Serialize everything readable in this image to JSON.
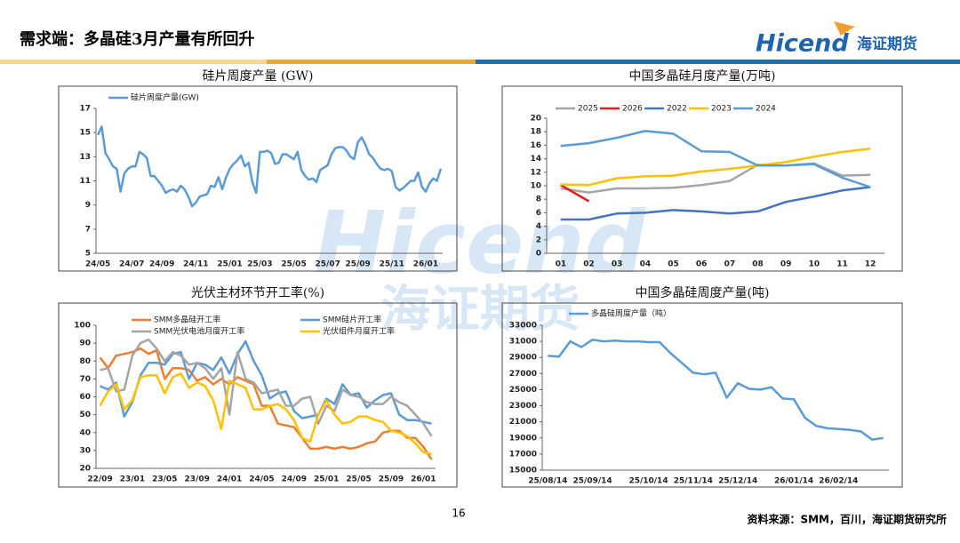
{
  "header": {
    "title": "需求端：多晶硅3月产量有所回升",
    "logo_latin": "Hicend",
    "logo_cn": "海证期货"
  },
  "watermark": {
    "latin": "Hicend",
    "cn": "海证期货"
  },
  "footer": {
    "page": "16",
    "source": "资料来源：SMM，百川，海证期货研究所"
  },
  "chart_data": [
    {
      "type": "line",
      "title": "硅片周度产量 (GW)",
      "categories": [
        "24/05",
        null,
        null,
        null,
        null,
        null,
        null,
        null,
        null,
        "24/07",
        null,
        null,
        null,
        null,
        null,
        null,
        null,
        "24/09",
        null,
        null,
        null,
        null,
        null,
        null,
        null,
        null,
        "24/11",
        null,
        null,
        null,
        null,
        null,
        null,
        null,
        null,
        "25/01",
        null,
        null,
        null,
        null,
        null,
        null,
        null,
        "25/03",
        null,
        null,
        null,
        null,
        null,
        null,
        null,
        null,
        "25/05",
        null,
        null,
        null,
        null,
        null,
        null,
        null,
        null,
        "25/07",
        null,
        null,
        null,
        null,
        null,
        null,
        null,
        "25/09",
        null,
        null,
        null,
        null,
        null,
        null,
        null,
        null,
        "25/11",
        null,
        null,
        null,
        null,
        null,
        null,
        null,
        null,
        "26/01",
        null,
        null,
        null,
        null
      ],
      "series": [
        {
          "name": "硅片周度产量(GW)",
          "color": "#5b9bd5",
          "values": [
            14.8,
            15.5,
            13.3,
            12.8,
            12.2,
            12.0,
            10.1,
            11.6,
            12.0,
            12.2,
            12.2,
            13.4,
            13.2,
            12.9,
            11.4,
            11.4,
            11.0,
            10.6,
            10.0,
            10.2,
            10.3,
            10.1,
            10.6,
            10.3,
            9.7,
            8.9,
            9.2,
            9.7,
            9.8,
            9.9,
            10.6,
            10.5,
            11.3,
            10.3,
            11.3,
            12.0,
            12.4,
            12.7,
            13.1,
            12.2,
            12.5,
            10.9,
            10.0,
            13.4,
            13.4,
            13.5,
            13.3,
            12.4,
            12.5,
            13.2,
            13.2,
            13.0,
            12.8,
            13.4,
            11.9,
            11.4,
            11.1,
            11.2,
            10.9,
            11.9,
            12.1,
            12.3,
            13.2,
            13.7,
            13.8,
            13.8,
            13.5,
            13.0,
            12.8,
            14.2,
            14.6,
            14.0,
            13.2,
            12.9,
            12.4,
            12.0,
            11.9,
            12.0,
            11.8,
            10.5,
            10.2,
            10.4,
            10.7,
            11.0,
            11.0,
            11.7,
            10.5,
            10.1,
            10.8,
            11.2,
            11.0,
            12.0
          ]
        }
      ],
      "ylim": [
        5,
        17
      ],
      "yticks": [
        5,
        7,
        9,
        11,
        13,
        15,
        17
      ],
      "legend": "top-left"
    },
    {
      "type": "line",
      "title": "中国多晶硅月度产量(万吨)",
      "categories": [
        "01",
        "02",
        "03",
        "04",
        "05",
        "06",
        "07",
        "08",
        "09",
        "10",
        "11",
        "12"
      ],
      "series": [
        {
          "name": "2025",
          "color": "#a5a5a5",
          "values": [
            9.6,
            9.0,
            9.6,
            9.6,
            9.7,
            10.1,
            10.7,
            13.1,
            13.0,
            13.3,
            11.5,
            11.6
          ]
        },
        {
          "name": "2026",
          "color": "#e02020",
          "values": [
            10.1,
            7.7,
            null,
            null,
            null,
            null,
            null,
            null,
            null,
            null,
            null,
            null
          ]
        },
        {
          "name": "2022",
          "color": "#4472c4",
          "values": [
            5.0,
            5.0,
            5.9,
            6.0,
            6.4,
            6.2,
            5.9,
            6.2,
            7.6,
            8.4,
            9.3,
            9.8
          ]
        },
        {
          "name": "2023",
          "color": "#ffc000",
          "values": [
            10.2,
            10.1,
            11.1,
            11.4,
            11.5,
            12.1,
            12.5,
            13.0,
            13.5,
            14.3,
            15.0,
            15.5
          ]
        },
        {
          "name": "2024",
          "color": "#5b9bd5",
          "values": [
            15.9,
            16.3,
            17.1,
            18.1,
            17.7,
            15.1,
            15.0,
            13.0,
            13.0,
            13.2,
            11.2,
            9.8
          ]
        }
      ],
      "ylim": [
        0,
        20
      ],
      "yticks": [
        0,
        2,
        4,
        6,
        8,
        10,
        12,
        14,
        16,
        18,
        20
      ],
      "legend": "top"
    },
    {
      "type": "line",
      "title": "光伏主材环节开工率(%)",
      "categories": [
        "22/09",
        null,
        null,
        null,
        "23/01",
        null,
        null,
        null,
        "23/05",
        null,
        null,
        null,
        "23/09",
        null,
        null,
        null,
        "24/01",
        null,
        null,
        null,
        "24/05",
        null,
        null,
        null,
        "24/09",
        null,
        null,
        null,
        "25/01",
        null,
        null,
        null,
        "25/05",
        null,
        null,
        null,
        "25/09",
        null,
        null,
        null,
        "26/01",
        null
      ],
      "series": [
        {
          "name": "SMM多晶硅开工率",
          "color": "#ed7d31",
          "values": [
            82,
            76,
            83,
            84,
            85,
            87,
            84,
            86,
            70,
            76,
            76,
            75,
            69,
            71,
            67,
            70,
            67,
            71,
            69,
            67,
            55,
            55,
            45,
            44,
            43,
            37,
            31,
            31,
            32,
            31,
            32,
            31,
            32,
            34,
            35,
            40,
            41,
            41,
            37,
            37,
            32,
            25
          ]
        },
        {
          "name": "SMM硅片开工率",
          "color": "#5b9bd5",
          "values": [
            66,
            64,
            68,
            49,
            57,
            72,
            79,
            79,
            78,
            84,
            85,
            70,
            79,
            78,
            75,
            82,
            73,
            84,
            91,
            80,
            72,
            59,
            62,
            63,
            52,
            48,
            49,
            50,
            59,
            56,
            67,
            61,
            62,
            54,
            58,
            61,
            62,
            50,
            47,
            47,
            46,
            45
          ]
        },
        {
          "name": "SMM光伏电池月度开工率",
          "color": "#a5a5a5",
          "values": [
            75,
            76,
            63,
            64,
            83,
            90,
            92,
            87,
            80,
            85,
            83,
            78,
            79,
            76,
            70,
            76,
            50,
            85,
            70,
            68,
            62,
            63,
            64,
            55,
            55,
            59,
            60,
            45,
            55,
            52,
            64,
            61,
            60,
            57,
            56,
            56,
            60,
            57,
            55,
            50,
            45,
            38
          ]
        },
        {
          "name": "光伏组件月度开工率",
          "color": "#ffc000",
          "values": [
            55,
            63,
            67,
            53,
            58,
            71,
            72,
            72,
            62,
            71,
            73,
            65,
            68,
            66,
            58,
            42,
            69,
            67,
            65,
            53,
            53,
            55,
            56,
            53,
            47,
            37,
            35,
            50,
            58,
            50,
            45,
            46,
            49,
            49,
            47,
            46,
            41,
            40,
            38,
            34,
            29,
            28
          ]
        }
      ],
      "ylim": [
        20,
        100
      ],
      "yticks": [
        20,
        30,
        40,
        50,
        60,
        70,
        80,
        90,
        100
      ],
      "legend": "top"
    },
    {
      "type": "line",
      "title": "中国多晶硅周度产量(吨)",
      "categories": [
        "25/08/14",
        null,
        null,
        null,
        "25/09/14",
        null,
        null,
        null,
        null,
        "25/10/14",
        null,
        null,
        null,
        "25/11/14",
        null,
        null,
        null,
        "25/12/14",
        null,
        null,
        null,
        null,
        "26/01/14",
        null,
        null,
        null,
        "26/02/14",
        null,
        null,
        null,
        null
      ],
      "series": [
        {
          "name": "多晶硅周度产量（吨）",
          "color": "#5b9bd5",
          "values": [
            29200,
            29100,
            31000,
            30300,
            31200,
            31000,
            31100,
            31000,
            31000,
            30900,
            30900,
            29500,
            28300,
            27100,
            26900,
            27100,
            24000,
            25800,
            25100,
            25000,
            25300,
            23900,
            23800,
            21500,
            20500,
            20200,
            20100,
            20000,
            19800,
            18800,
            19000
          ]
        }
      ],
      "ylim": [
        15000,
        33000
      ],
      "yticks": [
        15000,
        17000,
        19000,
        21000,
        23000,
        25000,
        27000,
        29000,
        31000,
        33000
      ],
      "legend": "top-left"
    }
  ]
}
